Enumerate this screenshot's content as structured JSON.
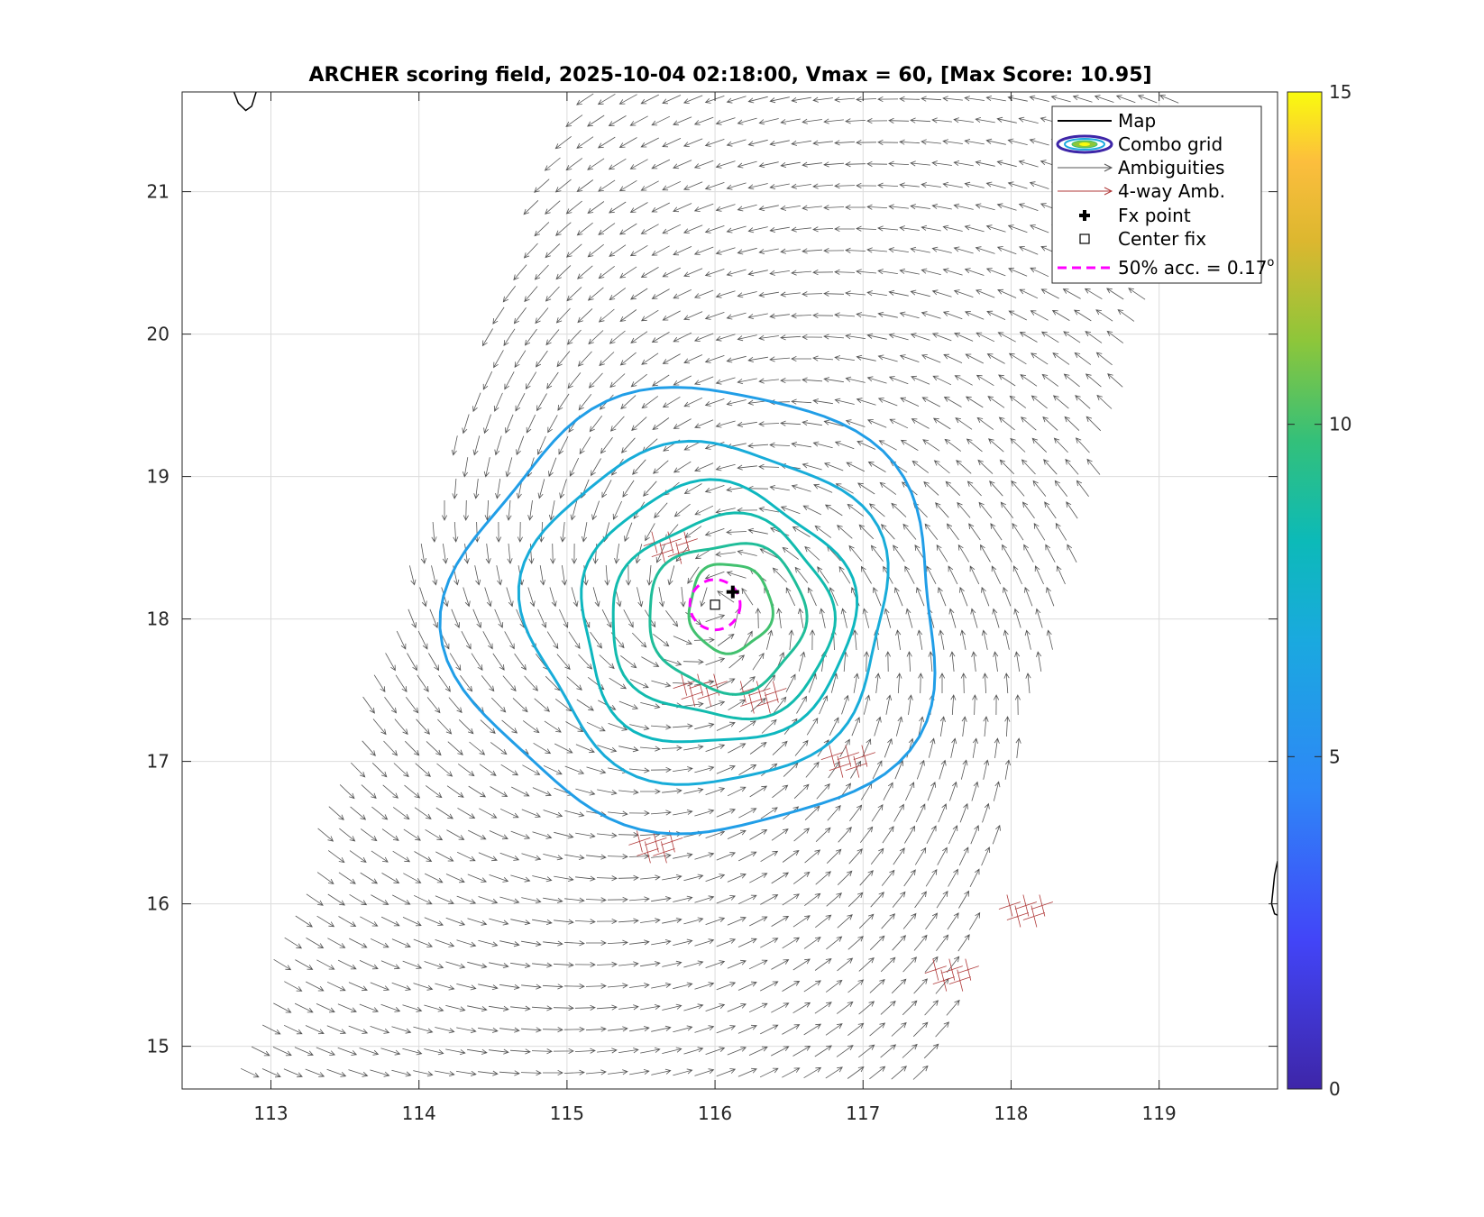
{
  "chart_data": {
    "type": "scatter",
    "title": "ARCHER scoring field, 2025-10-04 02:18:00, Vmax = 60, [Max Score: 10.95]",
    "xlabel": "",
    "ylabel": "",
    "xlim": [
      112.4,
      119.8
    ],
    "ylim": [
      14.7,
      21.7
    ],
    "xticks": [
      113,
      114,
      115,
      116,
      117,
      118,
      119
    ],
    "yticks": [
      15,
      16,
      17,
      18,
      19,
      20,
      21
    ],
    "xtick_labels": [
      "113",
      "114",
      "115",
      "116",
      "117",
      "118",
      "119"
    ],
    "ytick_labels": [
      "15",
      "16",
      "17",
      "18",
      "19",
      "20",
      "21"
    ],
    "grid": true,
    "legend_position": "top-right",
    "colorbar": {
      "limits": [
        0,
        15
      ],
      "ticks": [
        0,
        5,
        10,
        15
      ],
      "tick_labels": [
        "0",
        "5",
        "10",
        "15"
      ],
      "colormap": "parula"
    },
    "legend": [
      {
        "label": "Map",
        "icon": "line-icon"
      },
      {
        "label": "Combo grid",
        "icon": "contour-ellipse-icon"
      },
      {
        "label": "Ambiguities",
        "icon": "gray-arrow-icon"
      },
      {
        "label": "4-way Amb.",
        "icon": "red-arrow-icon"
      },
      {
        "label": "Fx point",
        "icon": "plus-marker-icon"
      },
      {
        "label": "Center fix",
        "icon": "square-marker-icon"
      },
      {
        "label": "50% acc. = 0.17",
        "label_sup": "o",
        "icon": "magenta-dash-icon"
      }
    ],
    "center_fix": {
      "x": 116.0,
      "y": 18.1
    },
    "fx_point": {
      "x": 116.12,
      "y": 18.19
    },
    "accuracy_circle": {
      "x": 116.0,
      "y": 18.1,
      "radius_deg": 0.17
    },
    "max_score": 10.95,
    "swath_corners": {
      "lon": [
        115.0,
        119.2,
        117.5,
        112.8
      ],
      "lat": [
        21.7,
        21.7,
        14.7,
        14.7
      ]
    },
    "storm_center": {
      "x": 116.0,
      "y": 18.1
    },
    "contours": [
      {
        "level": 10,
        "cx": 116.1,
        "cy": 18.08,
        "rx": 0.28,
        "ry": 0.3
      },
      {
        "level": 9,
        "cx": 116.08,
        "cy": 18.02,
        "rx": 0.53,
        "ry": 0.5
      },
      {
        "level": 8.5,
        "cx": 116.05,
        "cy": 18.0,
        "rx": 0.75,
        "ry": 0.68
      },
      {
        "level": 8,
        "cx": 116.0,
        "cy": 18.02,
        "rx": 0.92,
        "ry": 0.88
      },
      {
        "level": 7,
        "cx": 115.95,
        "cy": 18.05,
        "rx": 1.22,
        "ry": 1.15
      },
      {
        "level": 6,
        "cx": 115.9,
        "cy": 18.05,
        "rx": 1.65,
        "ry": 1.5
      }
    ],
    "coast_lines": [
      {
        "x": [
          112.75,
          112.78,
          112.83,
          112.87,
          112.9
        ],
        "y": [
          21.7,
          21.62,
          21.57,
          21.6,
          21.7
        ]
      },
      {
        "x": [
          119.8,
          119.78,
          119.76,
          119.78,
          119.8
        ],
        "y": [
          16.3,
          16.2,
          16.0,
          15.93,
          15.92
        ]
      }
    ]
  }
}
